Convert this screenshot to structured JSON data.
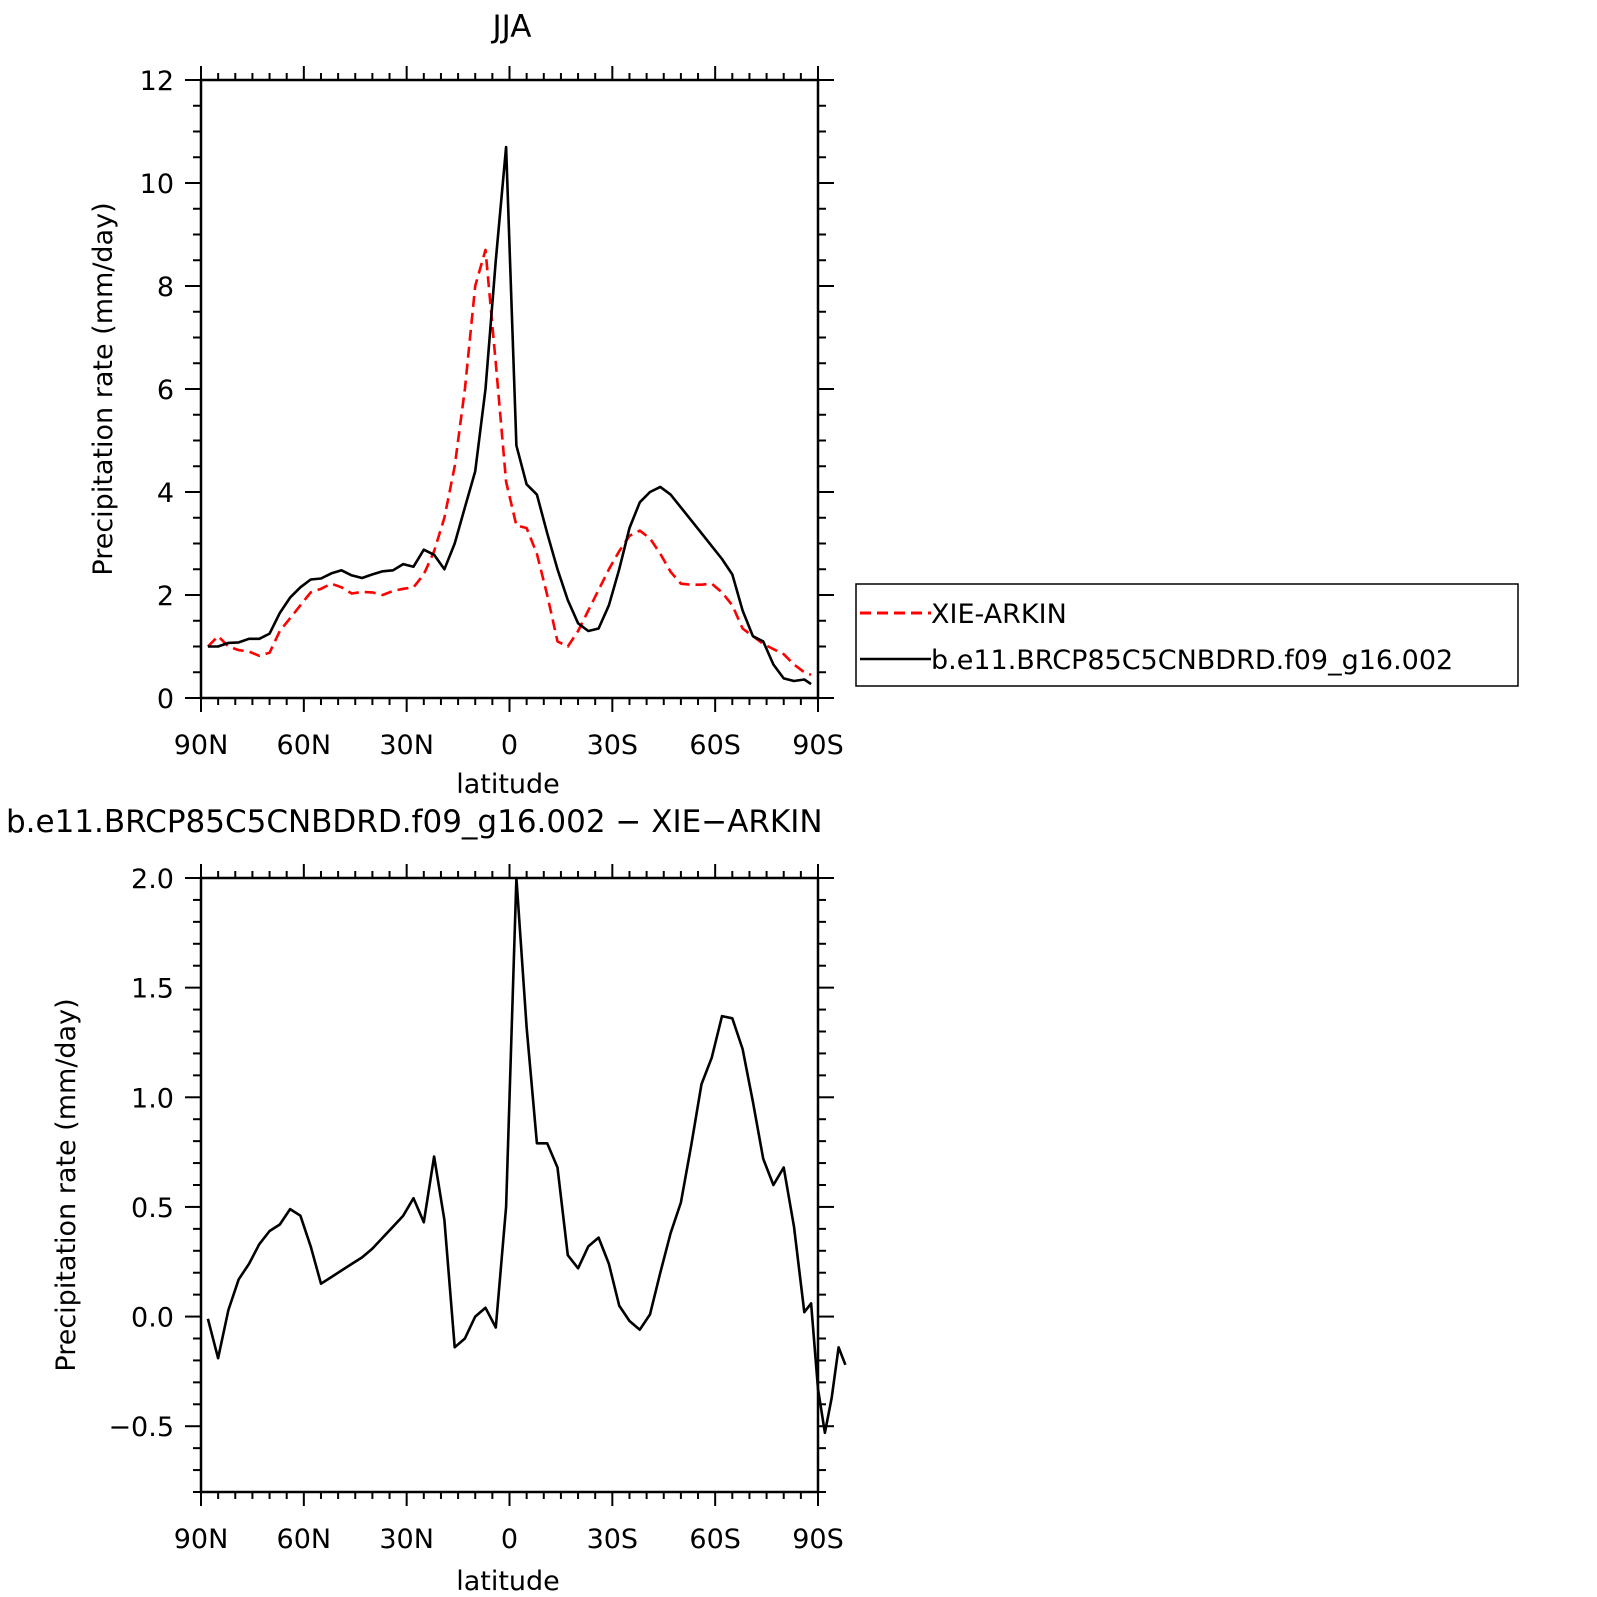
{
  "chart_data": [
    {
      "type": "line",
      "title": "JJA",
      "xlabel": "latitude",
      "ylabel": "Precipitation rate (mm/day)",
      "xlim": [
        90,
        -90
      ],
      "ylim": [
        0,
        12
      ],
      "x_ticks": [
        {
          "value": 90,
          "label": "90N"
        },
        {
          "value": 60,
          "label": "60N"
        },
        {
          "value": 30,
          "label": "30N"
        },
        {
          "value": 0,
          "label": "0"
        },
        {
          "value": -30,
          "label": "30S"
        },
        {
          "value": -60,
          "label": "60S"
        },
        {
          "value": -90,
          "label": "90S"
        }
      ],
      "y_ticks": [
        {
          "value": 0,
          "label": "0"
        },
        {
          "value": 2,
          "label": "2"
        },
        {
          "value": 4,
          "label": "4"
        },
        {
          "value": 6,
          "label": "6"
        },
        {
          "value": 8,
          "label": "8"
        },
        {
          "value": 10,
          "label": "10"
        },
        {
          "value": 12,
          "label": "12"
        }
      ],
      "grid": false,
      "legend": {
        "placement": "right"
      },
      "series": [
        {
          "name": "XIE-ARKIN",
          "color": "#ff0000",
          "dash": "dashed",
          "points": [
            [
              88,
              1.0
            ],
            [
              85,
              1.2
            ],
            [
              82,
              1.0
            ],
            [
              79,
              0.93
            ],
            [
              76,
              0.9
            ],
            [
              73,
              0.82
            ],
            [
              70,
              0.88
            ],
            [
              67,
              1.3
            ],
            [
              64,
              1.55
            ],
            [
              61,
              1.8
            ],
            [
              58,
              2.05
            ],
            [
              55,
              2.12
            ],
            [
              52,
              2.22
            ],
            [
              49,
              2.15
            ],
            [
              46,
              2.03
            ],
            [
              43,
              2.06
            ],
            [
              40,
              2.05
            ],
            [
              37,
              2.0
            ],
            [
              34,
              2.08
            ],
            [
              31,
              2.12
            ],
            [
              28,
              2.15
            ],
            [
              25,
              2.4
            ],
            [
              22,
              2.85
            ],
            [
              19,
              3.5
            ],
            [
              16,
              4.5
            ],
            [
              13,
              6.0
            ],
            [
              10,
              8.0
            ],
            [
              7,
              8.7
            ],
            [
              4,
              6.5
            ],
            [
              1,
              4.2
            ],
            [
              -2,
              3.35
            ],
            [
              -5,
              3.3
            ],
            [
              -8,
              2.8
            ],
            [
              -11,
              2.0
            ],
            [
              -14,
              1.1
            ],
            [
              -17,
              1.0
            ],
            [
              -20,
              1.3
            ],
            [
              -23,
              1.7
            ],
            [
              -26,
              2.1
            ],
            [
              -29,
              2.5
            ],
            [
              -32,
              2.85
            ],
            [
              -35,
              3.15
            ],
            [
              -38,
              3.25
            ],
            [
              -41,
              3.1
            ],
            [
              -44,
              2.8
            ],
            [
              -47,
              2.45
            ],
            [
              -50,
              2.22
            ],
            [
              -53,
              2.2
            ],
            [
              -56,
              2.2
            ],
            [
              -59,
              2.22
            ],
            [
              -62,
              2.05
            ],
            [
              -65,
              1.8
            ],
            [
              -68,
              1.35
            ],
            [
              -71,
              1.2
            ],
            [
              -74,
              1.05
            ],
            [
              -77,
              0.95
            ],
            [
              -80,
              0.85
            ],
            [
              -83,
              0.65
            ],
            [
              -86,
              0.5
            ],
            [
              -88,
              0.45
            ]
          ]
        },
        {
          "name": "b.e11.BRCP85C5CNBDRD.f09_g16.002",
          "color": "#000000",
          "dash": "solid",
          "points": [
            [
              88,
              1.0
            ],
            [
              85,
              1.0
            ],
            [
              82,
              1.07
            ],
            [
              79,
              1.08
            ],
            [
              76,
              1.15
            ],
            [
              73,
              1.15
            ],
            [
              70,
              1.25
            ],
            [
              67,
              1.65
            ],
            [
              64,
              1.95
            ],
            [
              61,
              2.15
            ],
            [
              58,
              2.3
            ],
            [
              55,
              2.32
            ],
            [
              52,
              2.42
            ],
            [
              49,
              2.48
            ],
            [
              46,
              2.38
            ],
            [
              43,
              2.33
            ],
            [
              40,
              2.4
            ],
            [
              37,
              2.46
            ],
            [
              34,
              2.48
            ],
            [
              31,
              2.6
            ],
            [
              28,
              2.55
            ],
            [
              25,
              2.88
            ],
            [
              22,
              2.78
            ],
            [
              19,
              2.5
            ],
            [
              16,
              3.0
            ],
            [
              13,
              3.7
            ],
            [
              10,
              4.4
            ],
            [
              7,
              6.0
            ],
            [
              4,
              8.5
            ],
            [
              1,
              10.7
            ],
            [
              -2,
              4.9
            ],
            [
              -5,
              4.15
            ],
            [
              -8,
              3.95
            ],
            [
              -11,
              3.2
            ],
            [
              -14,
              2.5
            ],
            [
              -17,
              1.9
            ],
            [
              -20,
              1.45
            ],
            [
              -23,
              1.3
            ],
            [
              -26,
              1.35
            ],
            [
              -29,
              1.8
            ],
            [
              -32,
              2.5
            ],
            [
              -35,
              3.3
            ],
            [
              -38,
              3.8
            ],
            [
              -41,
              4.0
            ],
            [
              -44,
              4.1
            ],
            [
              -47,
              3.95
            ],
            [
              -50,
              3.7
            ],
            [
              -53,
              3.45
            ],
            [
              -56,
              3.2
            ],
            [
              -59,
              2.95
            ],
            [
              -62,
              2.7
            ],
            [
              -65,
              2.4
            ],
            [
              -68,
              1.7
            ],
            [
              -71,
              1.2
            ],
            [
              -74,
              1.1
            ],
            [
              -77,
              0.65
            ],
            [
              -80,
              0.38
            ],
            [
              -83,
              0.33
            ],
            [
              -86,
              0.36
            ],
            [
              -88,
              0.27
            ]
          ]
        }
      ]
    },
    {
      "type": "line",
      "title": "b.e11.BRCP85C5CNBDRD.f09_g16.002 − XIE−ARKIN",
      "xlabel": "latitude",
      "ylabel": "Precipitation rate (mm/day)",
      "xlim": [
        90,
        -90
      ],
      "ylim": [
        -0.8,
        2.0
      ],
      "x_ticks": [
        {
          "value": 90,
          "label": "90N"
        },
        {
          "value": 60,
          "label": "60N"
        },
        {
          "value": 30,
          "label": "30N"
        },
        {
          "value": 0,
          "label": "0"
        },
        {
          "value": -30,
          "label": "30S"
        },
        {
          "value": -60,
          "label": "60S"
        },
        {
          "value": -90,
          "label": "90S"
        }
      ],
      "y_ticks": [
        {
          "value": -0.5,
          "label": "−0.5"
        },
        {
          "value": 0.0,
          "label": "0.0"
        },
        {
          "value": 0.5,
          "label": "0.5"
        },
        {
          "value": 1.0,
          "label": "1.0"
        },
        {
          "value": 1.5,
          "label": "1.5"
        },
        {
          "value": 2.0,
          "label": "2.0"
        }
      ],
      "grid": false,
      "series": [
        {
          "color": "#000000",
          "dash": "solid",
          "points": [
            [
              88,
              -0.01
            ],
            [
              85,
              -0.19
            ],
            [
              82,
              0.03
            ],
            [
              79,
              0.17
            ],
            [
              76,
              0.24
            ],
            [
              73,
              0.33
            ],
            [
              70,
              0.39
            ],
            [
              67,
              0.42
            ],
            [
              64,
              0.49
            ],
            [
              61,
              0.46
            ],
            [
              58,
              0.32
            ],
            [
              55,
              0.15
            ],
            [
              52,
              0.18
            ],
            [
              49,
              0.21
            ],
            [
              46,
              0.24
            ],
            [
              43,
              0.27
            ],
            [
              40,
              0.31
            ],
            [
              37,
              0.36
            ],
            [
              34,
              0.41
            ],
            [
              31,
              0.46
            ],
            [
              28,
              0.54
            ],
            [
              25,
              0.43
            ],
            [
              22,
              0.73
            ],
            [
              19,
              0.44
            ],
            [
              16,
              -0.14
            ],
            [
              13,
              -0.1
            ],
            [
              10,
              0.0
            ],
            [
              7,
              0.04
            ],
            [
              4,
              -0.05
            ],
            [
              1,
              0.5
            ],
            [
              -2,
              2.0
            ],
            [
              -5,
              1.32
            ],
            [
              -8,
              0.79
            ],
            [
              -11,
              0.79
            ],
            [
              -14,
              0.68
            ],
            [
              -17,
              0.28
            ],
            [
              -20,
              0.22
            ],
            [
              -23,
              0.32
            ],
            [
              -26,
              0.36
            ],
            [
              -29,
              0.24
            ],
            [
              -32,
              0.05
            ],
            [
              -35,
              -0.02
            ],
            [
              -38,
              -0.06
            ],
            [
              -41,
              0.01
            ],
            [
              -44,
              0.2
            ],
            [
              -47,
              0.38
            ],
            [
              -50,
              0.52
            ],
            [
              -53,
              0.78
            ],
            [
              -56,
              1.06
            ],
            [
              -59,
              1.18
            ],
            [
              -62,
              1.37
            ],
            [
              -65,
              1.36
            ],
            [
              -68,
              1.22
            ],
            [
              -71,
              0.98
            ],
            [
              -74,
              0.72
            ],
            [
              -77,
              0.6
            ],
            [
              -80,
              0.68
            ],
            [
              -83,
              0.41
            ],
            [
              -86,
              0.02
            ],
            [
              -88,
              0.06
            ],
            [
              -90,
              -0.33
            ],
            [
              -92,
              -0.53
            ],
            [
              -94,
              -0.37
            ],
            [
              -96,
              -0.14
            ],
            [
              -98,
              -0.22
            ]
          ]
        }
      ]
    }
  ]
}
